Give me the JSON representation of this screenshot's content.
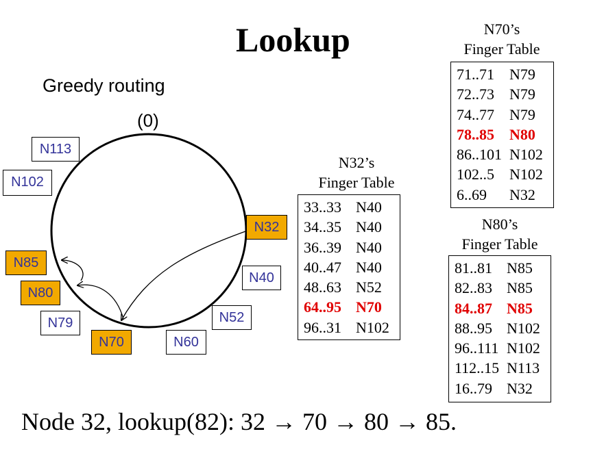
{
  "title": "Lookup",
  "subtitle": "Greedy routing",
  "ring_origin_label": "(0)",
  "nodes": [
    {
      "id": "N113",
      "highlighted": false
    },
    {
      "id": "N102",
      "highlighted": false
    },
    {
      "id": "N32",
      "highlighted": true
    },
    {
      "id": "N85",
      "highlighted": true
    },
    {
      "id": "N80",
      "highlighted": true
    },
    {
      "id": "N40",
      "highlighted": false
    },
    {
      "id": "N79",
      "highlighted": false
    },
    {
      "id": "N52",
      "highlighted": false
    },
    {
      "id": "N70",
      "highlighted": true
    },
    {
      "id": "N60",
      "highlighted": false
    }
  ],
  "finger_tables": {
    "n32": {
      "title_line1": "N32’s",
      "title_line2": "Finger Table",
      "rows": [
        {
          "range": "33..33",
          "node": "N40",
          "highlight": false
        },
        {
          "range": "34..35",
          "node": "N40",
          "highlight": false
        },
        {
          "range": "36..39",
          "node": "N40",
          "highlight": false
        },
        {
          "range": "40..47",
          "node": "N40",
          "highlight": false
        },
        {
          "range": "48..63",
          "node": "N52",
          "highlight": false
        },
        {
          "range": "64..95",
          "node": "N70",
          "highlight": true
        },
        {
          "range": "96..31",
          "node": "N102",
          "highlight": false
        }
      ]
    },
    "n70": {
      "title_line1": "N70’s",
      "title_line2": "Finger Table",
      "rows": [
        {
          "range": "71..71",
          "node": "N79",
          "highlight": false
        },
        {
          "range": "72..73",
          "node": "N79",
          "highlight": false
        },
        {
          "range": "74..77",
          "node": "N79",
          "highlight": false
        },
        {
          "range": "78..85",
          "node": "N80",
          "highlight": true
        },
        {
          "range": "86..101",
          "node": "N102",
          "highlight": false
        },
        {
          "range": "102..5",
          "node": "N102",
          "highlight": false
        },
        {
          "range": "6..69",
          "node": "N32",
          "highlight": false
        }
      ]
    },
    "n80": {
      "title_line1": "N80’s",
      "title_line2": "Finger Table",
      "rows": [
        {
          "range": "81..81",
          "node": "N85",
          "highlight": false
        },
        {
          "range": "82..83",
          "node": "N85",
          "highlight": false
        },
        {
          "range": "84..87",
          "node": "N85",
          "highlight": true
        },
        {
          "range": "88..95",
          "node": "N102",
          "highlight": false
        },
        {
          "range": "96..111",
          "node": "N102",
          "highlight": false
        },
        {
          "range": "112..15",
          "node": "N113",
          "highlight": false
        },
        {
          "range": "16..79",
          "node": "N32",
          "highlight": false
        }
      ]
    }
  },
  "footer": "Node 32, lookup(82): 32 → 70 → 80 → 85.",
  "colors": {
    "highlight_fill": "#f2a900",
    "node_text": "#333399",
    "table_highlight_text": "#e00000"
  }
}
